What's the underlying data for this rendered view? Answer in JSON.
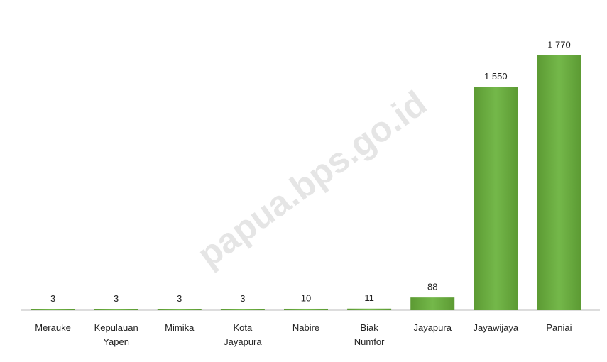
{
  "chart_data": {
    "type": "bar",
    "categories": [
      "Merauke",
      "Kepulauan Yapen",
      "Mimika",
      "Kota Jayapura",
      "Nabire",
      "Biak Numfor",
      "Jayapura",
      "Jayawijaya",
      "Paniai"
    ],
    "values": [
      3,
      3,
      3,
      3,
      10,
      11,
      88,
      1550,
      1770
    ],
    "value_labels": [
      "3",
      "3",
      "3",
      "3",
      "10",
      "11",
      "88",
      "1 550",
      "1 770"
    ],
    "color": "#6aab3e",
    "watermark": "papua.bps.go.id"
  }
}
